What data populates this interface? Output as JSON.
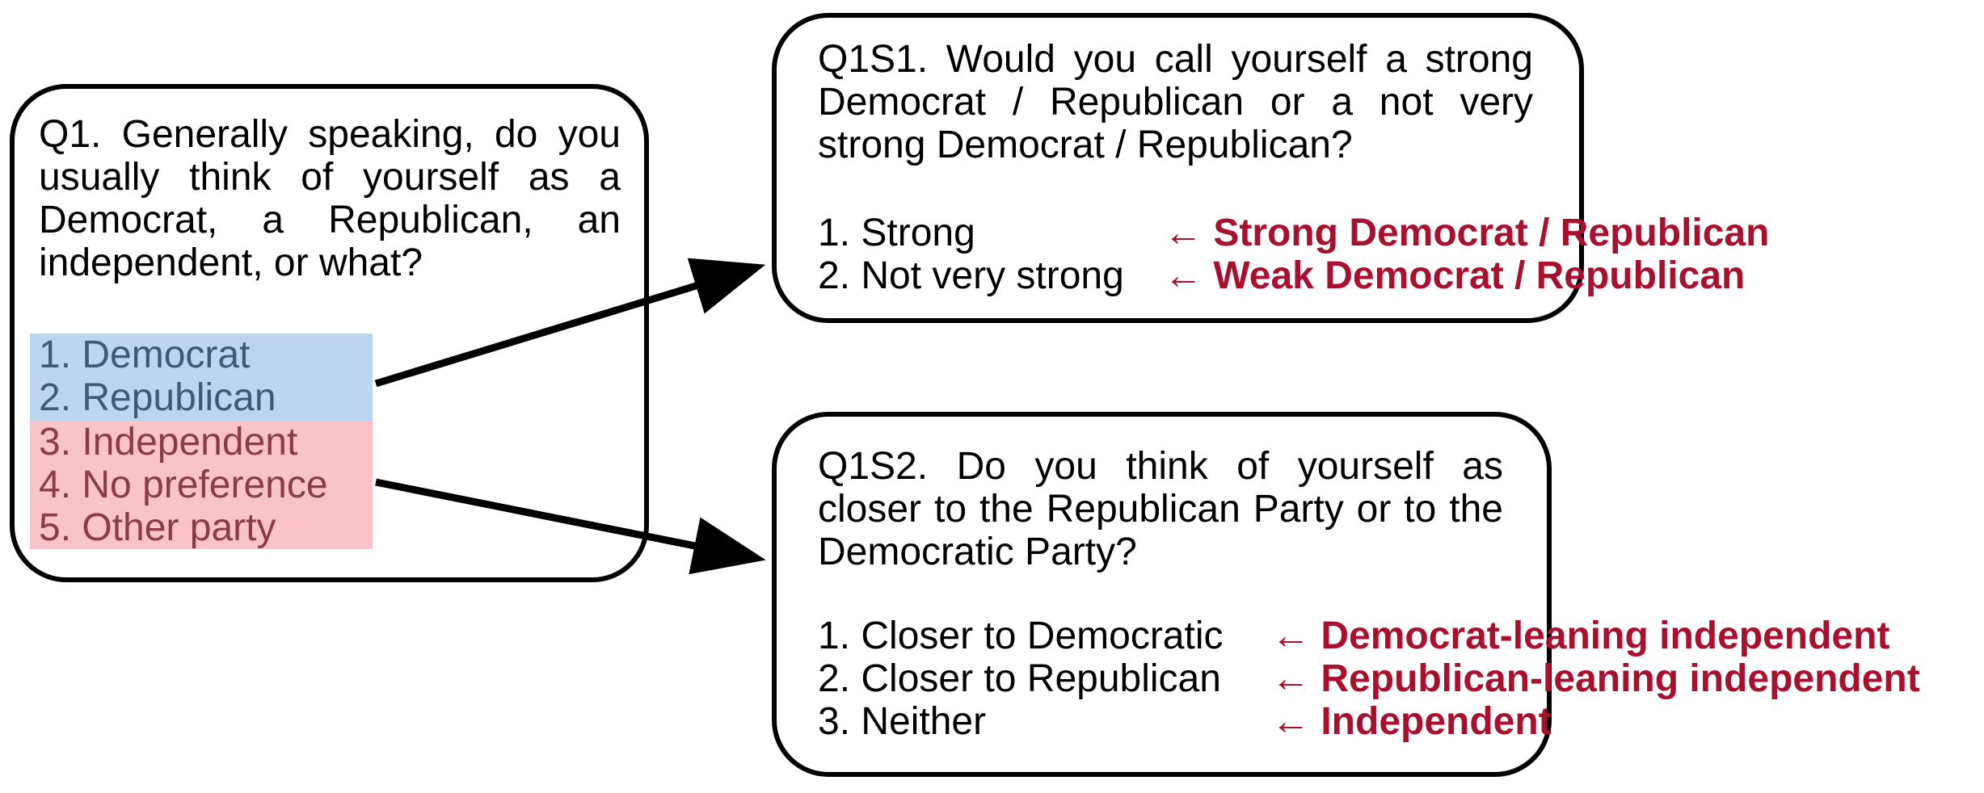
{
  "q1": {
    "question": "Q1. Generally speaking, do you usually think of yourself as a Democrat, a Republican, an independent, or what?",
    "options": [
      "1. Democrat",
      "2. Republican",
      "3. Independent",
      "4. No preference",
      "5. Other party"
    ]
  },
  "q1s1": {
    "question": "Q1S1. Would you call yourself a strong Democrat / Republican or a not very strong Democrat / Republican?",
    "options": [
      "1. Strong",
      "2. Not very strong"
    ],
    "results": [
      "Strong Democrat / Republican",
      "Weak Democrat / Republican"
    ]
  },
  "q1s2": {
    "question": "Q1S2. Do you think of yourself as closer to the Republican Party or to the Democratic Party?",
    "options": [
      "1. Closer to Democratic",
      "2. Closer to Republican",
      "3. Neither"
    ],
    "results": [
      "Democrat-leaning independent",
      "Republican-leaning independent",
      "Independent"
    ]
  },
  "arrow_glyph": "←",
  "colors": {
    "partisan_highlight": "#bcd6f2",
    "nonpartisan_highlight": "#f9c3c9",
    "result_text": "#a8102e"
  }
}
